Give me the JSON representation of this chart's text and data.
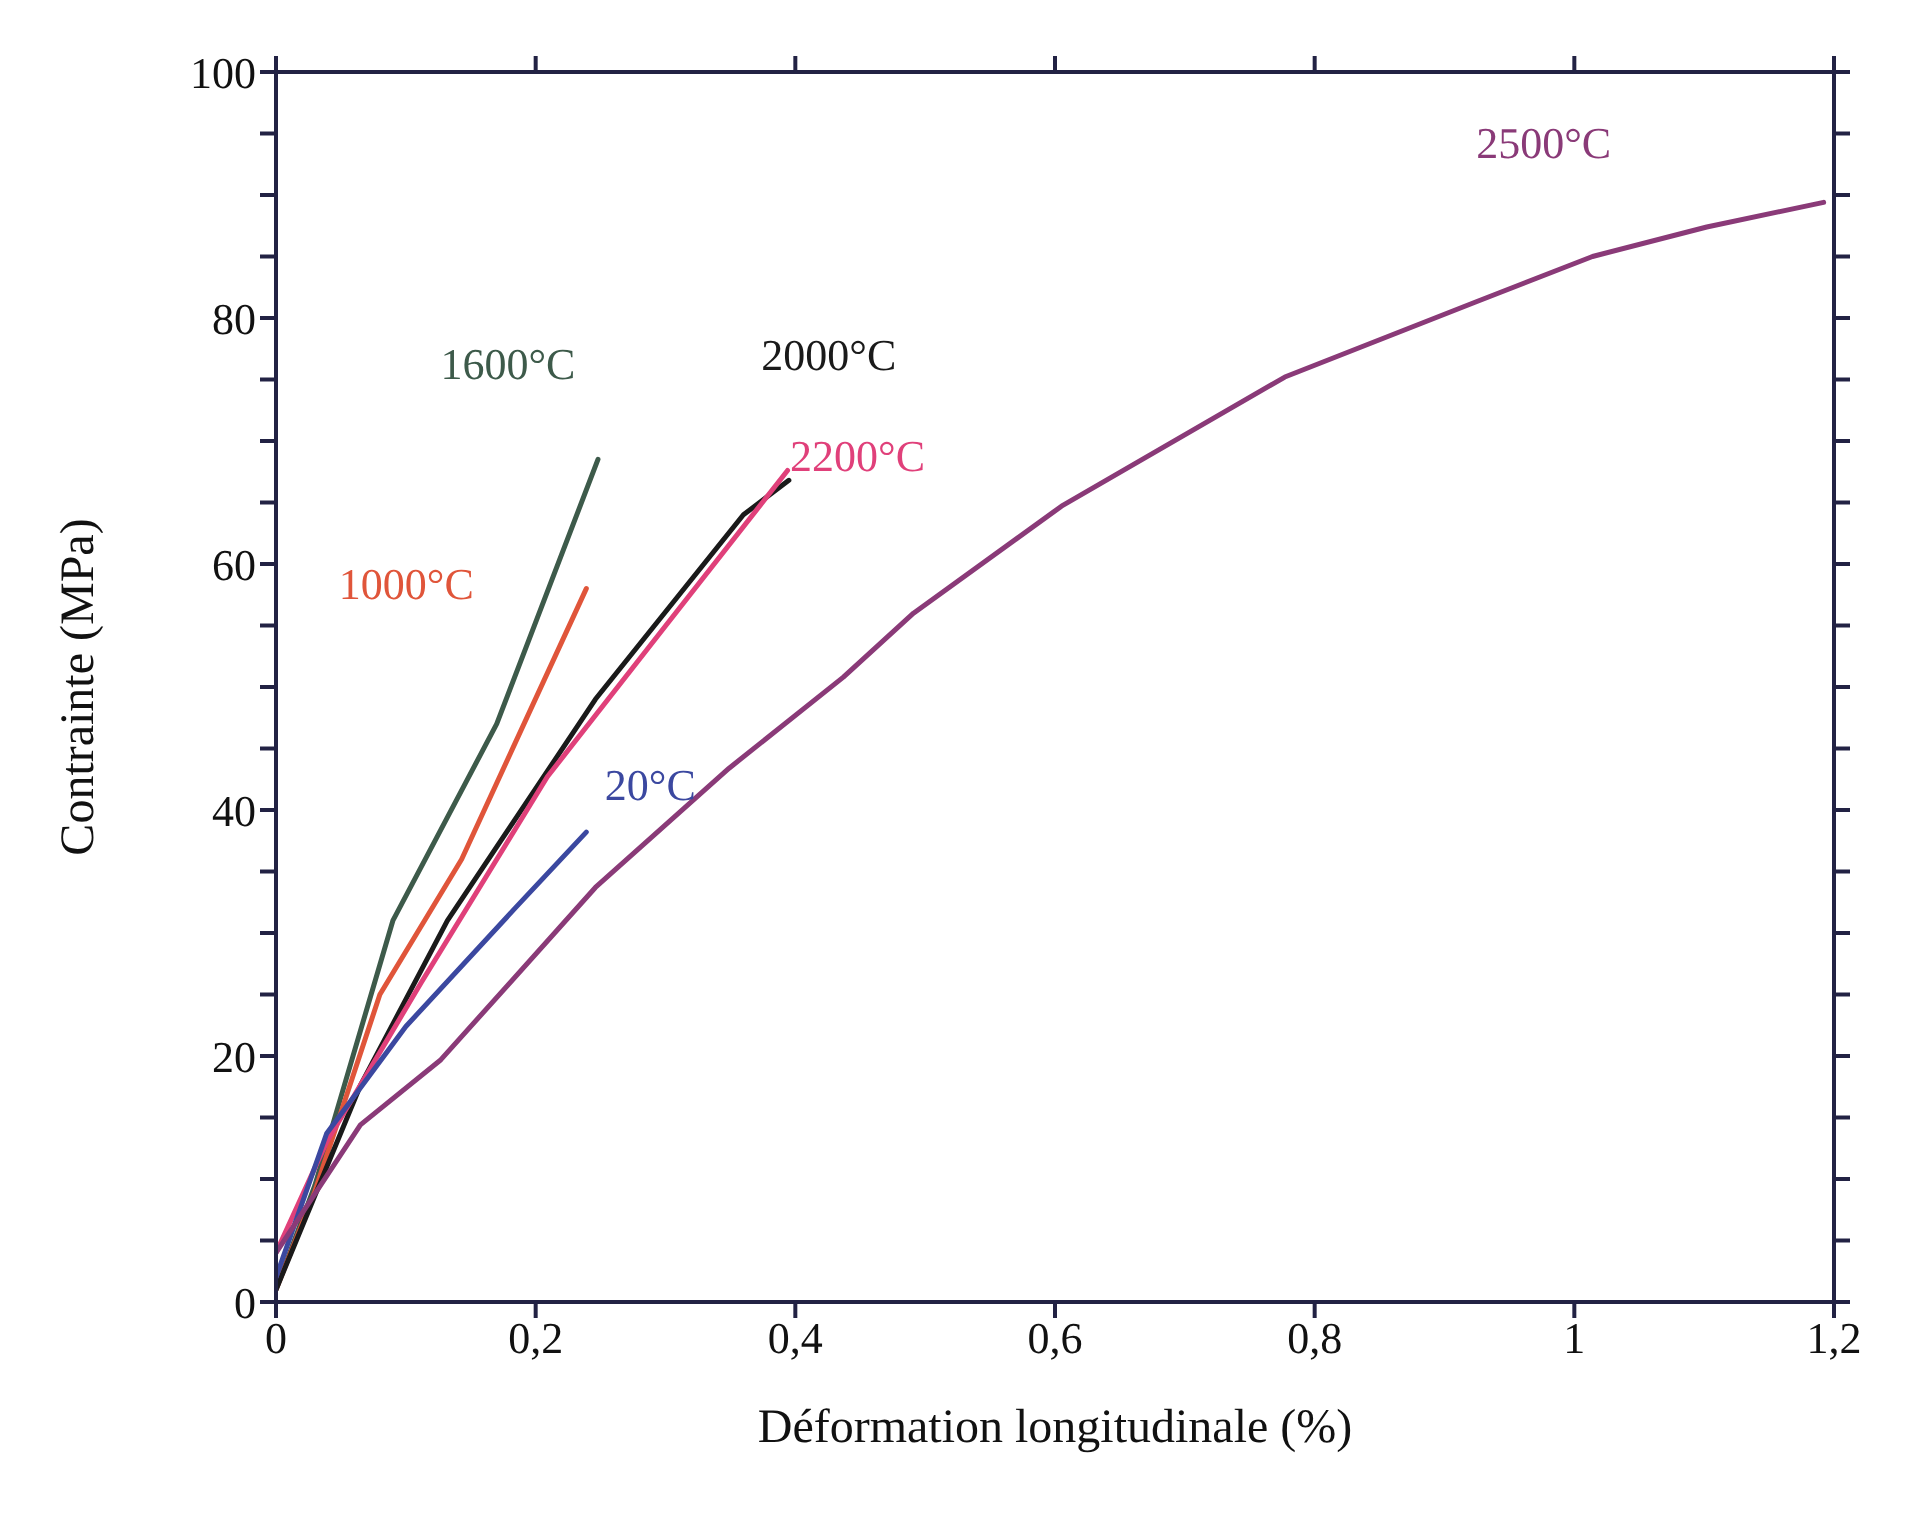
{
  "chart_data": {
    "type": "line",
    "xlabel": "Déformation longitudinale (%)",
    "ylabel": "Contrainte (MPa)",
    "xlim": [
      0,
      1.2
    ],
    "ylim": [
      0,
      100
    ],
    "xticks": [
      0,
      {
        "value": 0.2,
        "label": "0,2"
      },
      {
        "value": 0.4,
        "label": "0,4"
      },
      {
        "value": 0.6,
        "label": "0,6"
      },
      {
        "value": 0.8,
        "label": "0,8"
      },
      1,
      {
        "value": 1.2,
        "label": "1,2"
      }
    ],
    "yticks": [
      0,
      {
        "value": 5,
        "label": null
      },
      {
        "value": 10,
        "label": null
      },
      {
        "value": 15,
        "label": null
      },
      20,
      {
        "value": 25,
        "label": null
      },
      {
        "value": 30,
        "label": null
      },
      {
        "value": 35,
        "label": null
      },
      40,
      {
        "value": 45,
        "label": null
      },
      {
        "value": 50,
        "label": null
      },
      {
        "value": 55,
        "label": null
      },
      60,
      {
        "value": 65,
        "label": null
      },
      {
        "value": 70,
        "label": null
      },
      {
        "value": 75,
        "label": null
      },
      80,
      {
        "value": 85,
        "label": null
      },
      {
        "value": 90,
        "label": null
      },
      {
        "value": 95,
        "label": null
      },
      100
    ],
    "grid": false,
    "legend": false,
    "marker": "none",
    "line_style": "solid",
    "series": [
      {
        "name": "1600°C",
        "color": "#3d5a4a",
        "x": [
          0,
          0.03,
          0.09,
          0.17,
          0.248
        ],
        "values": [
          1,
          9.5,
          31,
          47,
          68.5
        ]
      },
      {
        "name": "1000°C",
        "color": "#e0553a",
        "x": [
          0,
          0.03,
          0.08,
          0.143,
          0.239
        ],
        "values": [
          1,
          9,
          25,
          36,
          58
        ]
      },
      {
        "name": "2000°C",
        "color": "#1a1a1a",
        "x": [
          0,
          0.065,
          0.132,
          0.246,
          0.36,
          0.395
        ],
        "values": [
          1,
          17.6,
          31,
          49,
          64,
          66.8
        ]
      },
      {
        "name": "2200°C",
        "color": "#e0407a",
        "x": [
          0,
          0.039,
          0.112,
          0.209,
          0.298,
          0.394
        ],
        "values": [
          4,
          13,
          26,
          42.7,
          54.7,
          67.6
        ]
      },
      {
        "name": "20°C",
        "color": "#3b48a0",
        "x": [
          0,
          0.039,
          0.1,
          0.184,
          0.239
        ],
        "values": [
          2,
          13.7,
          22.4,
          32,
          38.2
        ]
      },
      {
        "name": "2500°C",
        "color": "#8a3a78",
        "x": [
          0,
          0.065,
          0.127,
          0.246,
          0.349,
          0.437,
          0.491,
          0.605,
          0.777,
          0.924,
          1.014,
          1.102,
          1.192
        ],
        "values": [
          4,
          14.4,
          19.7,
          33.7,
          43.4,
          50.8,
          56,
          64.7,
          75.2,
          81.3,
          85,
          87.4,
          89.4
        ]
      }
    ]
  }
}
